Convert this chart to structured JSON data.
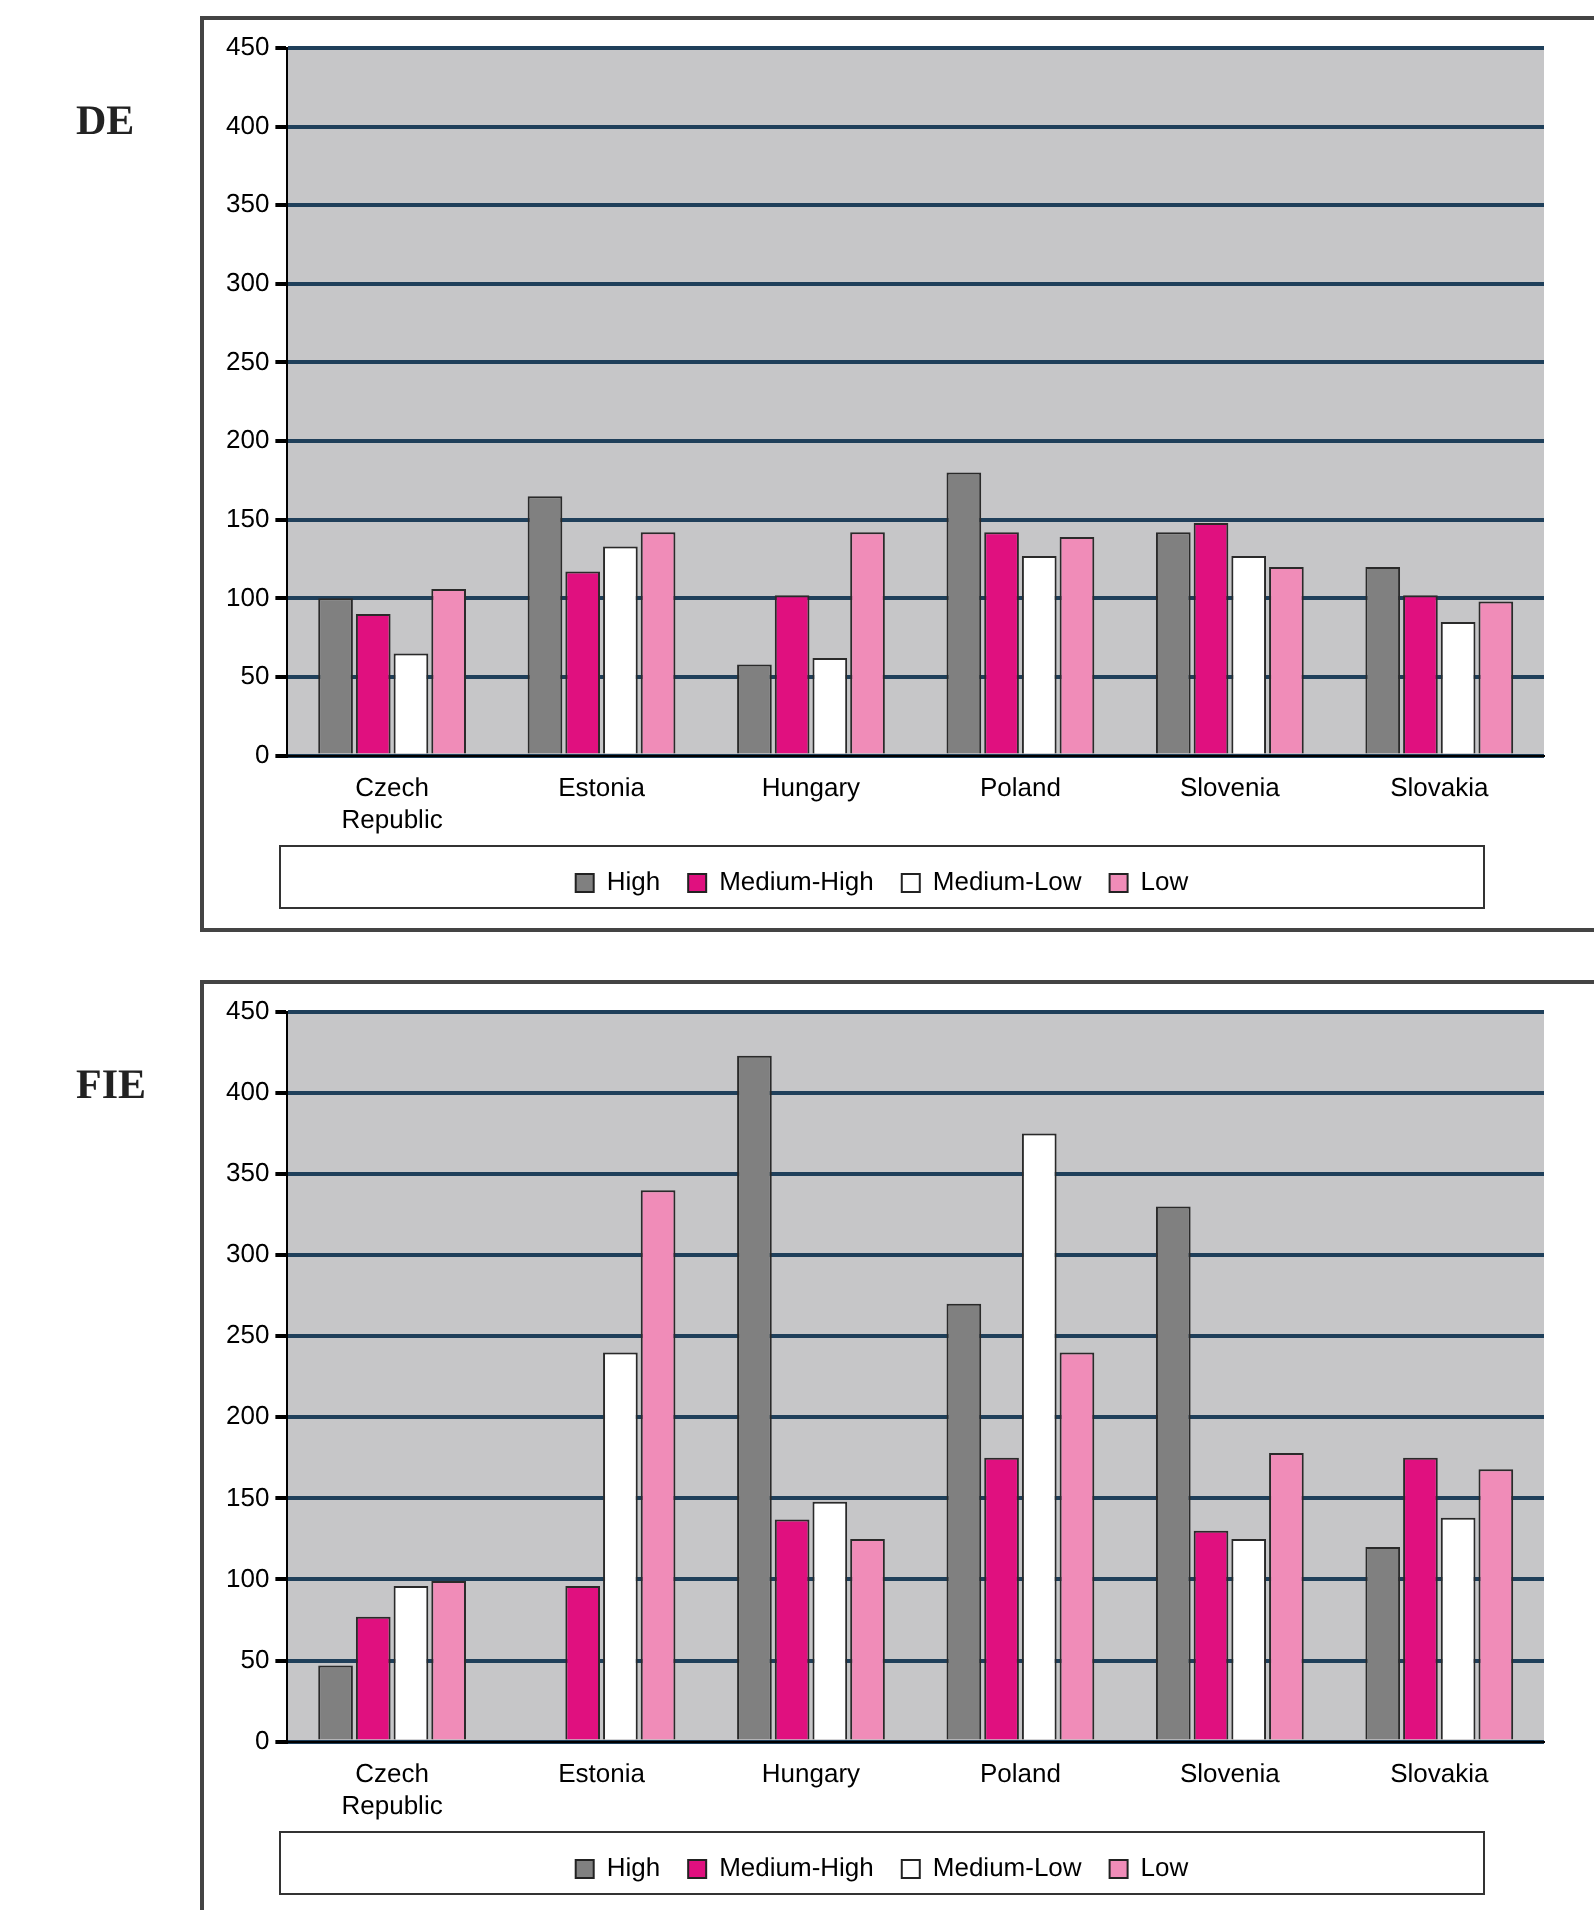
{
  "chart_data": [
    {
      "type": "bar",
      "title": "DE",
      "categories": [
        "Czech Republic",
        "Estonia",
        "Hungary",
        "Poland",
        "Slovenia",
        "Slovakia"
      ],
      "series": [
        {
          "name": "High",
          "color": "#808080",
          "values": [
            100,
            165,
            58,
            180,
            142,
            120
          ]
        },
        {
          "name": "Medium-High",
          "color": "#e0107f",
          "values": [
            90,
            117,
            102,
            142,
            148,
            102
          ]
        },
        {
          "name": "Medium-Low",
          "color": "#ffffff",
          "values": [
            65,
            133,
            62,
            127,
            127,
            85
          ]
        },
        {
          "name": "Low",
          "color": "#f08cb8",
          "values": [
            106,
            142,
            142,
            139,
            120,
            98
          ]
        }
      ],
      "ylim": [
        0,
        450
      ],
      "yticks": [
        0,
        50,
        100,
        150,
        200,
        250,
        300,
        350,
        400,
        450
      ],
      "grid": "y",
      "legend": "bottom"
    },
    {
      "type": "bar",
      "title": "FIE",
      "categories": [
        "Czech Republic",
        "Estonia",
        "Hungary",
        "Poland",
        "Slovenia",
        "Slovakia"
      ],
      "series": [
        {
          "name": "High",
          "color": "#808080",
          "values": [
            47,
            null,
            423,
            270,
            330,
            120
          ]
        },
        {
          "name": "Medium-High",
          "color": "#e0107f",
          "values": [
            77,
            96,
            137,
            175,
            130,
            175
          ]
        },
        {
          "name": "Medium-Low",
          "color": "#ffffff",
          "values": [
            96,
            240,
            148,
            375,
            125,
            138
          ]
        },
        {
          "name": "Low",
          "color": "#f08cb8",
          "values": [
            99,
            340,
            125,
            240,
            178,
            168
          ]
        }
      ],
      "ylim": [
        0,
        450
      ],
      "yticks": [
        0,
        50,
        100,
        150,
        200,
        250,
        300,
        350,
        400,
        450
      ],
      "grid": "y",
      "legend": "bottom"
    }
  ]
}
